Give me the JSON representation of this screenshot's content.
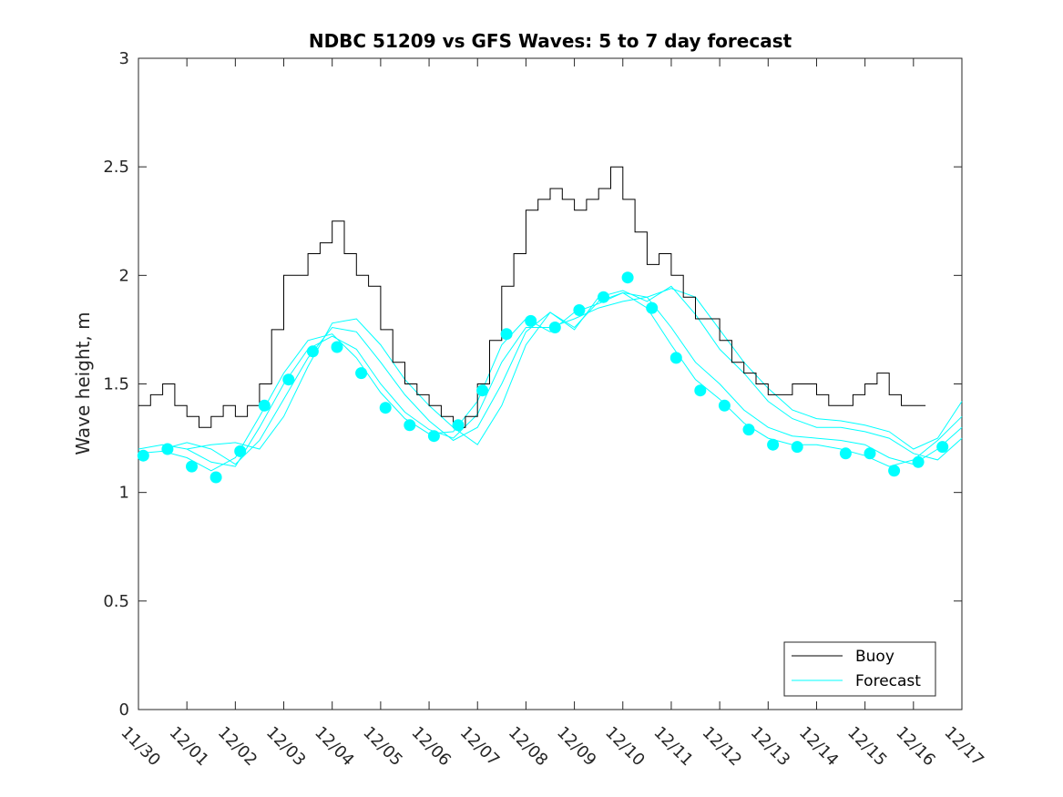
{
  "chart_data": {
    "type": "line",
    "title": "NDBC 51209 vs GFS Waves: 5 to 7 day forecast",
    "xlabel": "",
    "ylabel": "Wave height, m",
    "xlim": [
      0,
      17
    ],
    "ylim": [
      0,
      3
    ],
    "x_tick_labels": [
      "11/30",
      "12/01",
      "12/02",
      "12/03",
      "12/04",
      "12/05",
      "12/06",
      "12/07",
      "12/08",
      "12/09",
      "12/10",
      "12/11",
      "12/12",
      "12/13",
      "12/14",
      "12/15",
      "12/16",
      "12/17"
    ],
    "y_ticks": [
      0,
      0.5,
      1,
      1.5,
      2,
      2.5,
      3
    ],
    "y_tick_labels": [
      "0",
      "0.5",
      "1",
      "1.5",
      "2",
      "2.5",
      "3"
    ],
    "grid": false,
    "legend_position": "bottom-right",
    "colors": {
      "buoy": "#000000",
      "forecast": "#00ffff",
      "axes": "#262626"
    },
    "buoy": {
      "name": "Buoy",
      "x": [
        0,
        0.25,
        0.5,
        0.75,
        1,
        1.25,
        1.5,
        1.75,
        2,
        2.25,
        2.5,
        2.75,
        3,
        3.25,
        3.5,
        3.75,
        4,
        4.25,
        4.5,
        4.75,
        5,
        5.25,
        5.5,
        5.75,
        6,
        6.25,
        6.5,
        6.75,
        7,
        7.25,
        7.5,
        7.75,
        8,
        8.25,
        8.5,
        8.75,
        9,
        9.25,
        9.5,
        9.75,
        10,
        10.25,
        10.5,
        10.75,
        11,
        11.25,
        11.5,
        11.75,
        12,
        12.25,
        12.5,
        12.75,
        13,
        13.25,
        13.5,
        13.75,
        14,
        14.25,
        14.5,
        14.75,
        15,
        15.25,
        15.5,
        15.75,
        16,
        16.25
      ],
      "y": [
        1.4,
        1.45,
        1.5,
        1.4,
        1.35,
        1.3,
        1.35,
        1.4,
        1.35,
        1.4,
        1.5,
        1.75,
        2.0,
        2.0,
        2.1,
        2.15,
        2.25,
        2.1,
        2.0,
        1.95,
        1.75,
        1.6,
        1.5,
        1.45,
        1.4,
        1.35,
        1.3,
        1.35,
        1.5,
        1.7,
        1.95,
        2.1,
        2.3,
        2.35,
        2.4,
        2.35,
        2.3,
        2.35,
        2.4,
        2.5,
        2.35,
        2.2,
        2.05,
        2.1,
        2.0,
        1.9,
        1.8,
        1.8,
        1.7,
        1.6,
        1.55,
        1.5,
        1.45,
        1.45,
        1.5,
        1.5,
        1.45,
        1.4,
        1.4,
        1.45,
        1.5,
        1.55,
        1.45,
        1.4,
        1.4,
        1.4
      ]
    },
    "forecast_markers": {
      "name": "Forecast",
      "x": [
        0.1,
        0.6,
        1.1,
        1.6,
        2.1,
        2.6,
        3.1,
        3.6,
        4.1,
        4.6,
        5.1,
        5.6,
        6.1,
        6.6,
        7.1,
        7.6,
        8.1,
        8.6,
        9.1,
        9.6,
        10.1,
        10.6,
        11.1,
        11.6,
        12.1,
        12.6,
        13.1,
        13.6,
        14.6,
        15.1,
        15.6,
        16.1,
        16.6
      ],
      "y": [
        1.17,
        1.2,
        1.12,
        1.07,
        1.19,
        1.4,
        1.52,
        1.65,
        1.67,
        1.55,
        1.39,
        1.31,
        1.26,
        1.31,
        1.47,
        1.73,
        1.79,
        1.76,
        1.84,
        1.9,
        1.99,
        1.85,
        1.62,
        1.47,
        1.4,
        1.29,
        1.22,
        1.21,
        1.18,
        1.18,
        1.1,
        1.14,
        1.21
      ]
    },
    "forecast_runs": [
      {
        "x": [
          0,
          0.5,
          1,
          1.5,
          2,
          2.5,
          3,
          3.5,
          4,
          4.5,
          5,
          5.5,
          6,
          6.5,
          7,
          7.5,
          8,
          8.5,
          9,
          9.5,
          10,
          10.5,
          11,
          11.5,
          12,
          12.5,
          13,
          13.5,
          14,
          14.5,
          15,
          15.5,
          16,
          16.5,
          17
        ],
        "y": [
          1.18,
          1.19,
          1.16,
          1.1,
          1.16,
          1.35,
          1.55,
          1.7,
          1.73,
          1.62,
          1.46,
          1.34,
          1.27,
          1.28,
          1.42,
          1.68,
          1.8,
          1.74,
          1.83,
          1.87,
          1.92,
          1.85,
          1.68,
          1.52,
          1.43,
          1.32,
          1.25,
          1.22,
          1.22,
          1.2,
          1.17,
          1.12,
          1.15,
          1.24,
          1.35
        ]
      },
      {
        "x": [
          0,
          0.5,
          1,
          1.5,
          2,
          2.5,
          3,
          3.5,
          4,
          4.5,
          5,
          5.5,
          6,
          6.5,
          7,
          7.5,
          8,
          8.5,
          9,
          9.5,
          10,
          10.5,
          11,
          11.5,
          12,
          12.5,
          13,
          13.5,
          14,
          14.5,
          15,
          15.5,
          16,
          16.5,
          17
        ],
        "y": [
          1.2,
          1.22,
          1.2,
          1.14,
          1.12,
          1.3,
          1.5,
          1.66,
          1.72,
          1.66,
          1.5,
          1.37,
          1.29,
          1.25,
          1.36,
          1.6,
          1.76,
          1.76,
          1.8,
          1.85,
          1.88,
          1.9,
          1.76,
          1.6,
          1.5,
          1.38,
          1.3,
          1.26,
          1.25,
          1.24,
          1.22,
          1.16,
          1.13,
          1.2,
          1.3
        ]
      },
      {
        "x": [
          0.5,
          1,
          1.5,
          2,
          2.5,
          3,
          3.5,
          4,
          4.5,
          5,
          5.5,
          6,
          6.5,
          7,
          7.5,
          8,
          8.5,
          9,
          9.5,
          10,
          10.5,
          11,
          11.5,
          12,
          12.5,
          13,
          13.5,
          14,
          14.5,
          15,
          15.5,
          16,
          16.5,
          17
        ],
        "y": [
          1.2,
          1.23,
          1.2,
          1.13,
          1.24,
          1.43,
          1.62,
          1.76,
          1.74,
          1.6,
          1.45,
          1.33,
          1.24,
          1.3,
          1.5,
          1.74,
          1.83,
          1.75,
          1.9,
          1.93,
          1.88,
          1.95,
          1.82,
          1.66,
          1.55,
          1.42,
          1.34,
          1.3,
          1.3,
          1.28,
          1.25,
          1.18,
          1.15,
          1.25
        ]
      },
      {
        "x": [
          1,
          1.5,
          2,
          2.5,
          3,
          3.5,
          4,
          4.5,
          5,
          5.5,
          6,
          6.5,
          7,
          7.5,
          8,
          8.5,
          9,
          9.5,
          10,
          10.5,
          11,
          11.5,
          12,
          12.5,
          13,
          13.5,
          14,
          14.5,
          15,
          15.5,
          16,
          16.5,
          17
        ],
        "y": [
          1.2,
          1.22,
          1.23,
          1.2,
          1.35,
          1.58,
          1.78,
          1.8,
          1.68,
          1.52,
          1.4,
          1.3,
          1.22,
          1.4,
          1.68,
          1.83,
          1.76,
          1.88,
          1.92,
          1.9,
          1.94,
          1.9,
          1.75,
          1.6,
          1.48,
          1.38,
          1.34,
          1.33,
          1.31,
          1.28,
          1.2,
          1.25,
          1.42
        ]
      }
    ]
  }
}
